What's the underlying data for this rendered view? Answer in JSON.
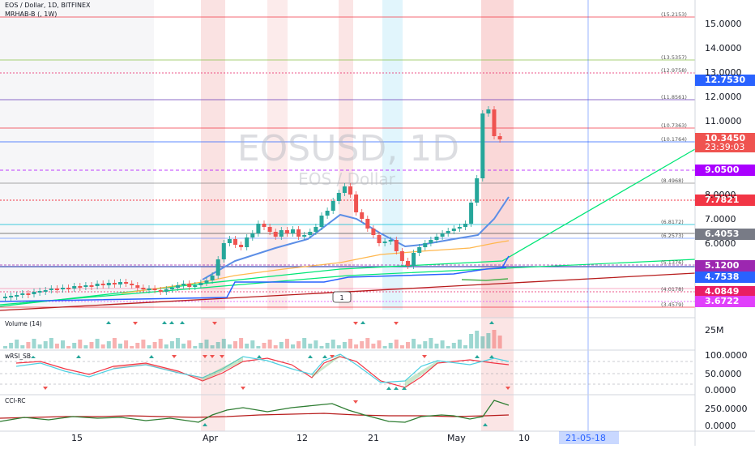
{
  "header": {
    "symbol_line": "EOS / Dollar, 1D, BITFINEX",
    "indicator_line": "MRHAB-B (, 1W)"
  },
  "watermark": {
    "symbol": "EOSUSD, 1D",
    "name": "EOS / Dollar"
  },
  "marker_label": "1",
  "price_axis": {
    "ticks": [
      "15.0000",
      "14.0000",
      "13.0000",
      "12.0000",
      "11.0000",
      "8.0000",
      "7.0000",
      "6.0000"
    ]
  },
  "price_tags": [
    {
      "text": "12.7530",
      "color": "#2962ff"
    },
    {
      "text": "10.3450",
      "color": "#ef5350",
      "sub": "23:39:03"
    },
    {
      "text": "9.0500",
      "color": "#aa00ff"
    },
    {
      "text": "7.7821",
      "color": "#f23645"
    },
    {
      "text": "6.4053",
      "color": "#787b86"
    },
    {
      "text": "5.1200",
      "color": "#9c27b0"
    },
    {
      "text": "4.7538",
      "color": "#2962ff"
    },
    {
      "text": "4.0849",
      "color": "#e91e63"
    },
    {
      "text": "3.6722",
      "color": "#e040fb"
    }
  ],
  "level_labels": [
    "(15.2153)",
    "(13.5357)",
    "(12.9758)",
    "(11.8561)",
    "(10.7363)",
    "(10.1764)",
    "(8.4968)",
    "(6.8172)",
    "(6.2573)",
    "(5.1376)",
    "(4.0178)",
    "(3.4579)"
  ],
  "panes": {
    "volume": {
      "label": "Volume (14)",
      "tick": "25M"
    },
    "wrsi": {
      "label": "wRSI_SB",
      "ticks": [
        "100.0000",
        "50.0000",
        "0.0000"
      ]
    },
    "cci": {
      "label": "CCI-RC",
      "ticks": [
        "250.0000",
        "0.0000"
      ]
    }
  },
  "time_axis": {
    "labels": [
      "15",
      "Apr",
      "12",
      "21",
      "May",
      "10"
    ],
    "cursor_date": "21-05-18"
  },
  "colors": {
    "up": "#26a69a",
    "down": "#ef5350",
    "cursor": "#2962ff"
  }
}
